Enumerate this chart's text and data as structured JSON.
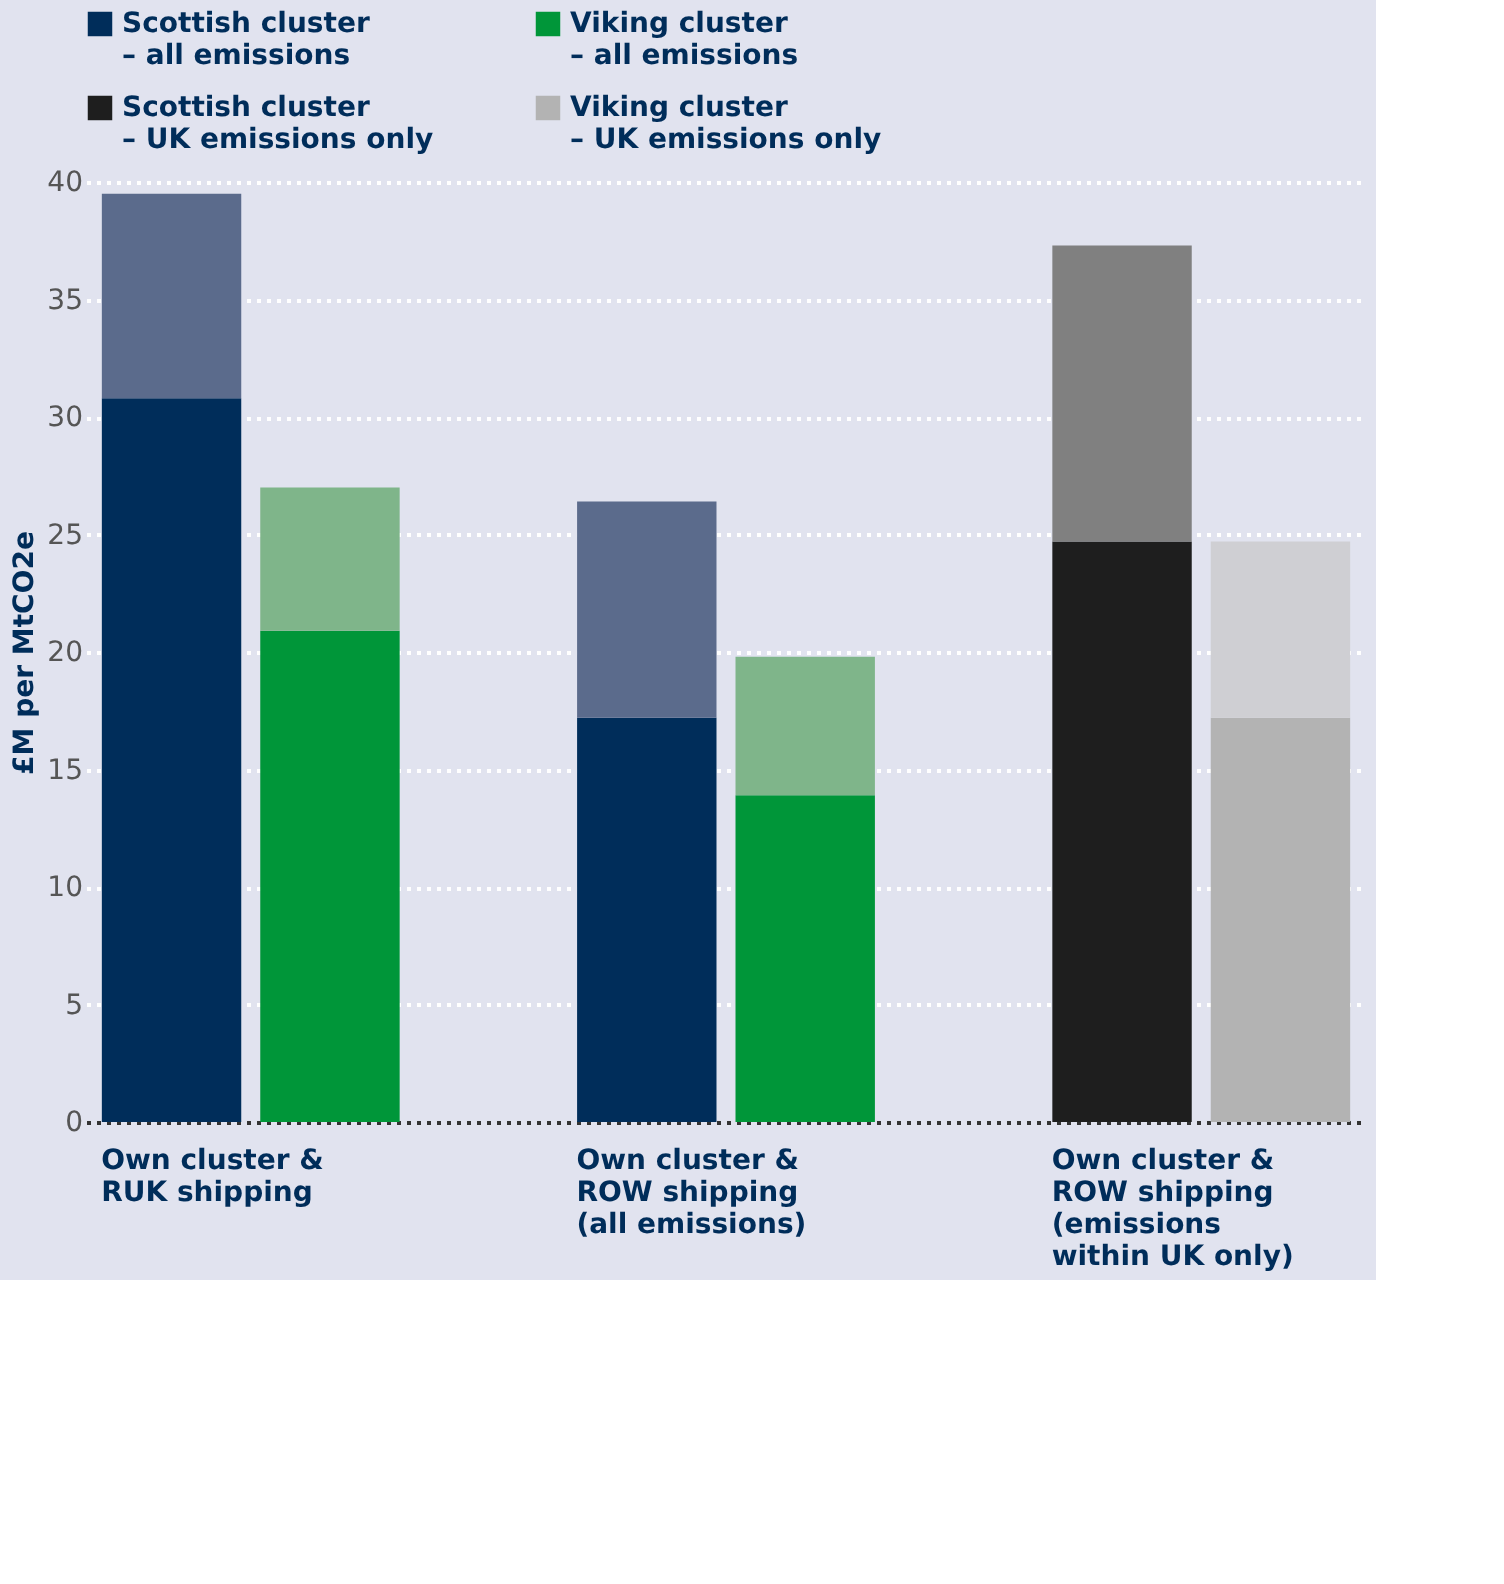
{
  "chart_data": {
    "type": "bar",
    "stacked": true,
    "ylabel": "£M per MtCO2e",
    "categories": [
      "Own cluster &\nRUK shipping",
      null,
      null,
      "Own cluster &\nROW shipping\n(all emissions)",
      null,
      null,
      "Own cluster &\nROW shipping\n(emissions\nwithin UK only)",
      null
    ],
    "series": [
      {
        "name": "Scottish cluster\n– all emissions",
        "color": "#002d5a",
        "values": [
          30.8,
          null,
          null,
          17.2,
          null,
          null,
          null,
          null
        ]
      },
      {
        "color": "#5b6b8c",
        "values": [
          8.7,
          null,
          null,
          9.2,
          null,
          null,
          null,
          null
        ]
      },
      {
        "name": "Viking cluster\n– all emissions",
        "color": "#009639",
        "values": [
          null,
          20.9,
          null,
          null,
          13.9,
          null,
          null,
          null
        ]
      },
      {
        "color": "#7fb58a",
        "values": [
          null,
          6.1,
          null,
          null,
          5.9,
          null,
          null,
          null
        ]
      },
      {
        "name": "Scottish cluster\n– UK emissions only",
        "color": "#1e1e1e",
        "values": [
          null,
          null,
          null,
          null,
          null,
          null,
          24.7,
          null
        ]
      },
      {
        "color": "#808080",
        "values": [
          null,
          null,
          null,
          null,
          null,
          null,
          12.6,
          null
        ]
      },
      {
        "name": "Viking cluster\n– UK emissions only",
        "color": "#b3b3b3",
        "values": [
          null,
          null,
          null,
          null,
          null,
          null,
          null,
          17.2
        ]
      },
      {
        "color": "#cfcfd3",
        "values": [
          null,
          null,
          null,
          null,
          null,
          null,
          null,
          7.5
        ]
      }
    ],
    "ylim": [
      0,
      40
    ],
    "yticks": [
      0,
      5,
      10,
      15,
      20,
      25,
      30,
      35,
      40
    ],
    "grid": "y",
    "legend": "top"
  }
}
